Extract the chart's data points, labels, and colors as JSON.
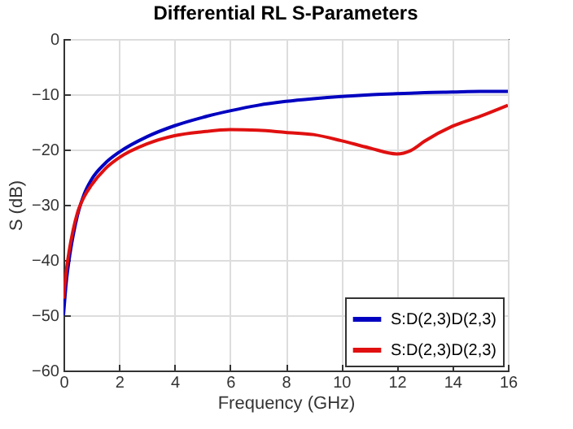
{
  "chart_data": {
    "type": "line",
    "title": "Differential RL S-Parameters",
    "xlabel": "Frequency (GHz)",
    "ylabel": "S (dB)",
    "x": [
      0,
      0.1,
      0.2,
      0.35,
      0.5,
      0.75,
      1,
      1.5,
      2,
      3,
      4,
      5,
      6,
      7,
      8,
      9,
      10,
      11,
      12,
      12.5,
      13,
      14,
      15,
      16
    ],
    "series": [
      {
        "name": "S:D(2,3)D(2,3)",
        "color": "#0000c0",
        "values": [
          -50,
          -44,
          -40,
          -35.5,
          -32,
          -28,
          -25.5,
          -22.5,
          -20.5,
          -17.7,
          -15.7,
          -14.2,
          -13,
          -12,
          -11.3,
          -10.8,
          -10.4,
          -10.1,
          -9.9,
          -9.8,
          -9.7,
          -9.6,
          -9.5,
          -9.5
        ]
      },
      {
        "name": "S:D(2,3)D(2,3)",
        "color": "#e01010",
        "values": [
          -47,
          -42,
          -38.5,
          -34.5,
          -31.5,
          -28.5,
          -26.5,
          -23.5,
          -21.5,
          -19,
          -17.5,
          -16.8,
          -16.4,
          -16.5,
          -16.9,
          -17.3,
          -18.4,
          -19.7,
          -20.8,
          -20.2,
          -18.5,
          -15.8,
          -14,
          -12
        ]
      }
    ],
    "xlim": [
      0,
      16
    ],
    "xticks": [
      0,
      2,
      4,
      6,
      8,
      10,
      12,
      14,
      16
    ],
    "ylim": [
      -60,
      0
    ],
    "yticks": [
      -60,
      -50,
      -40,
      -30,
      -20,
      -10,
      0
    ],
    "grid": true,
    "legend": "bottom right",
    "line_style": "solid"
  }
}
